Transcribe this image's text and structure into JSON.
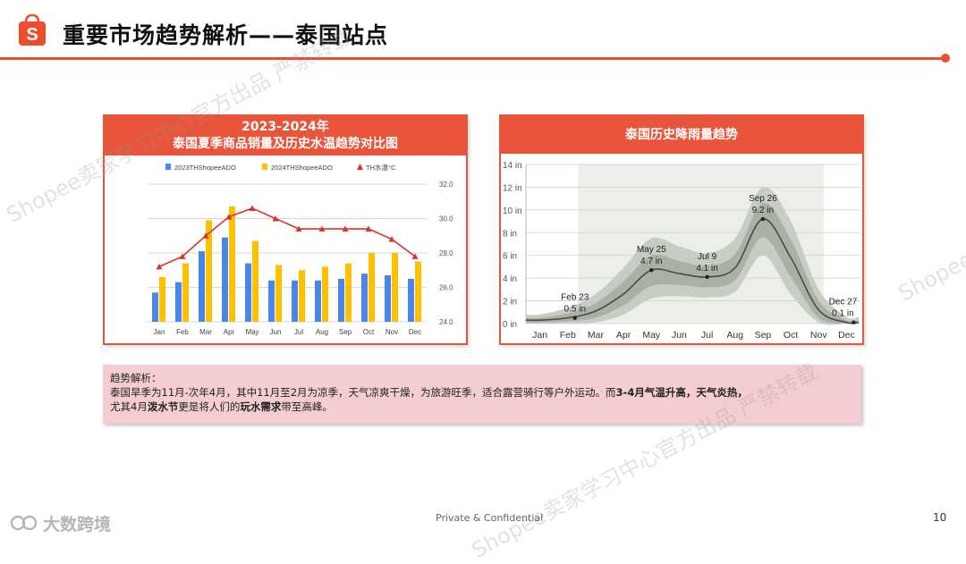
{
  "header": {
    "title": "重要市场趋势解析——泰国站点",
    "logo_letter": "S",
    "accent": "#ee4d2d"
  },
  "left_panel": {
    "title_line1": "2023-2024年",
    "title_line2": "泰国夏季商品销量及历史水温趋势对比图"
  },
  "right_panel": {
    "title": "泰国历史降雨量趋势"
  },
  "note": {
    "heading": "趋势解析：",
    "line2_plain": "泰国旱季为11月-次年4月，其中11月至2月为凉季，天气凉爽干燥，为旅游旺季，适合露营骑行等户外运动。而",
    "line2_bold": "3-4月气温升高，天气炎热，",
    "line3_a": "尤其4月",
    "line3_b": "泼水节",
    "line3_c": "更是将人们的",
    "line3_d": "玩水需求",
    "line3_e": "带至高峰。"
  },
  "footer": {
    "brand": "大数跨境",
    "confidential": "Private & Confidential",
    "page": "10"
  },
  "watermarks": {
    "a": "Shopee卖家学习中心官方出品 严禁转载",
    "b": "Shopee"
  },
  "chart_data": [
    {
      "type": "bar",
      "categories": [
        "Jan",
        "Feb",
        "Mar",
        "Apr",
        "May",
        "Jun",
        "Jul",
        "Aug",
        "Sep",
        "Oct",
        "Nov",
        "Dec"
      ],
      "series": [
        {
          "name": "2023THShopeeADO",
          "kind": "bar",
          "color": "#4a86e8",
          "values": [
            25.7,
            26.3,
            28.1,
            28.9,
            27.4,
            26.4,
            26.4,
            26.4,
            26.5,
            26.8,
            26.7,
            26.5
          ]
        },
        {
          "name": "2024THShopeeADO",
          "kind": "bar",
          "color": "#ffc000",
          "values": [
            26.6,
            27.4,
            29.9,
            30.7,
            28.7,
            27.3,
            27.0,
            27.2,
            27.4,
            28.0,
            28.0,
            27.5
          ]
        },
        {
          "name": "TH水温°C",
          "kind": "line",
          "color": "#d9342b",
          "values": [
            27.2,
            27.8,
            29.0,
            30.1,
            30.6,
            30.0,
            29.4,
            29.4,
            29.4,
            29.4,
            28.8,
            27.8
          ]
        }
      ],
      "ylim": [
        24,
        32
      ],
      "yticks": [
        "24.0",
        "26.0",
        "28.0",
        "30.0",
        "32.0"
      ],
      "legend_position": "top",
      "grid": true
    },
    {
      "type": "area",
      "x": [
        "Jan",
        "Feb",
        "Mar",
        "Apr",
        "May",
        "Jun",
        "Jul",
        "Aug",
        "Sep",
        "Oct",
        "Nov",
        "Dec"
      ],
      "ylim": [
        0,
        14
      ],
      "yticks": [
        "0 in",
        "2 in",
        "4 in",
        "6 in",
        "8 in",
        "10 in",
        "12 in",
        "14 in"
      ],
      "median": [
        0.3,
        0.5,
        1.1,
        2.6,
        4.7,
        4.4,
        4.1,
        4.9,
        9.2,
        5.8,
        1.2,
        0.1
      ],
      "band_inner": {
        "low": [
          0.1,
          0.2,
          0.5,
          1.6,
          3.3,
          3.4,
          3.2,
          3.8,
          7.6,
          4.1,
          0.5,
          0.0
        ],
        "high": [
          0.5,
          0.9,
          1.8,
          3.7,
          6.0,
          5.5,
          5.1,
          6.1,
          10.6,
          7.4,
          2.0,
          0.3
        ]
      },
      "band_outer": {
        "low": [
          0.0,
          0.0,
          0.1,
          0.8,
          2.2,
          2.4,
          2.3,
          2.8,
          6.0,
          2.6,
          0.1,
          0.0
        ],
        "high": [
          0.8,
          1.4,
          2.6,
          4.9,
          7.5,
          6.8,
          6.2,
          7.5,
          12.0,
          9.0,
          3.0,
          0.6
        ]
      },
      "annotations": [
        {
          "x": "Feb",
          "day": "Feb 23",
          "value": "0.5 in",
          "v": 0.5
        },
        {
          "x": "May",
          "day": "May 25",
          "value": "4.7 in",
          "v": 4.7
        },
        {
          "x": "Jul",
          "day": "Jul 9",
          "value": "4.1 in",
          "v": 4.1
        },
        {
          "x": "Sep",
          "day": "Sep 26",
          "value": "9.2 in",
          "v": 9.2
        },
        {
          "x": "Dec",
          "day": "Dec 27",
          "value": "0.1 in",
          "v": 0.1
        }
      ],
      "wet_season_shading": [
        "Mar",
        "Nov"
      ]
    }
  ]
}
